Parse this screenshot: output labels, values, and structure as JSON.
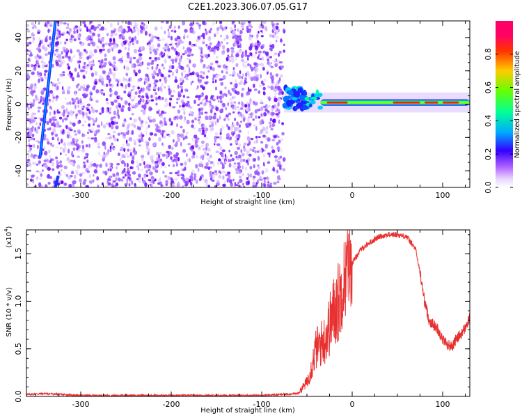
{
  "title": "C2E1.2023.306.07.05.G17",
  "chart_data": [
    {
      "type": "heatmap",
      "xlabel": "Height of straight line (km)",
      "ylabel": "Frequency (Hz)",
      "xlim": [
        -360,
        130
      ],
      "ylim": [
        -50,
        50
      ],
      "xticks": [
        -300,
        -200,
        -100,
        0,
        100
      ],
      "yticks": [
        -40,
        -20,
        0,
        20,
        40
      ],
      "colorbar": {
        "label": "Normalized spectral amplitude",
        "range": [
          0,
          1
        ],
        "ticks": [
          "0.0",
          "0.2",
          "0.4",
          "0.6",
          "0.8"
        ],
        "colors": [
          "#ffffff",
          "#cc99ff",
          "#7700ff",
          "#0000ff",
          "#00ddff",
          "#00ff66",
          "#aaff00",
          "#ffaa00",
          "#ff0000",
          "#ff0099"
        ]
      },
      "features": {
        "noise_region_x": [
          -360,
          -75
        ],
        "diagonal_track": {
          "x": [
            -345,
            -328
          ],
          "y": [
            -32,
            50
          ],
          "x_lower": [
            -328,
            -325
          ],
          "y_lower": [
            -50,
            -43
          ]
        },
        "tone_line_x": [
          -75,
          130
        ],
        "tone_frequency": [
          3,
          0,
          1,
          3,
          2
        ]
      }
    },
    {
      "type": "line",
      "xlabel": "Height of straight line (km)",
      "ylabel": "SNR (10 * v/v)",
      "y_exponent_label": "(x10",
      "y_exponent": "4",
      "y_exponent_close": ")",
      "xlim": [
        -360,
        130
      ],
      "ylim": [
        0,
        1.75
      ],
      "xticks": [
        -300,
        -200,
        -100,
        0,
        100
      ],
      "yticks": [
        "0.0",
        "0.5",
        "1.0",
        "1.5"
      ],
      "series": [
        {
          "color": "#e83030",
          "x": [
            -360,
            -340,
            -320,
            -300,
            -200,
            -100,
            -60,
            -50,
            -45,
            -40,
            -35,
            -30,
            -25,
            -20,
            -15,
            -10,
            -5,
            0,
            10,
            20,
            30,
            40,
            50,
            60,
            70,
            75,
            80,
            85,
            90,
            95,
            100,
            105,
            110,
            115,
            120,
            125,
            130
          ],
          "y": [
            0.02,
            0.03,
            0.02,
            0.01,
            0.01,
            0.01,
            0.03,
            0.15,
            0.3,
            0.5,
            0.55,
            0.6,
            0.75,
            0.9,
            1.0,
            1.2,
            1.35,
            1.4,
            1.55,
            1.62,
            1.68,
            1.7,
            1.7,
            1.68,
            1.55,
            1.3,
            1.0,
            0.8,
            0.75,
            0.7,
            0.6,
            0.55,
            0.52,
            0.6,
            0.65,
            0.72,
            0.82
          ]
        }
      ]
    }
  ]
}
